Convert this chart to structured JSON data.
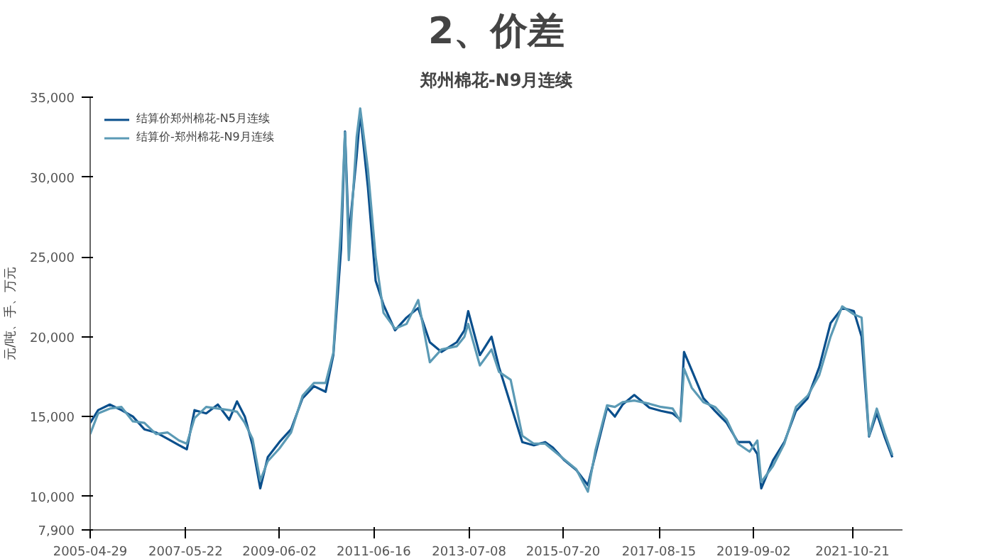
{
  "chart_data": {
    "type": "line",
    "title": "2、价差",
    "subtitle": "郑州棉花-N9月连续",
    "ylabel": "元/吨、手、万元",
    "xlim": [
      "2005-04-29",
      "2022-11-20"
    ],
    "xticks": [
      "2005-04-29",
      "2007-05-22",
      "2009-06-02",
      "2011-06-16",
      "2013-07-08",
      "2015-07-20",
      "2017-08-15",
      "2019-09-02",
      "2021-10-21"
    ],
    "ylim": [
      7900,
      35000
    ],
    "yticks": [
      {
        "value": 7900,
        "label": "7,900"
      },
      {
        "value": 10000,
        "label": "10,000"
      },
      {
        "value": 15000,
        "label": "15,000"
      },
      {
        "value": 20000,
        "label": "20,000"
      },
      {
        "value": 25000,
        "label": "25,000"
      },
      {
        "value": 30000,
        "label": "30,000"
      },
      {
        "value": 35000,
        "label": "35,000"
      }
    ],
    "grid": false,
    "legend": "top left",
    "line_style": "solid",
    "marker": "none",
    "x": [
      "2005-04-29",
      "2005-07",
      "2005-10",
      "2006-01",
      "2006-04",
      "2006-07",
      "2006-10",
      "2007-01",
      "2007-04",
      "2007-06",
      "2007-08",
      "2007-11",
      "2008-02",
      "2008-05",
      "2008-07",
      "2008-09",
      "2008-11",
      "2009-01",
      "2009-03",
      "2009-06",
      "2009-09",
      "2009-12",
      "2010-03",
      "2010-06",
      "2010-08",
      "2010-10",
      "2010-11",
      "2010-12",
      "2011-02",
      "2011-03",
      "2011-05",
      "2011-07",
      "2011-09",
      "2011-12",
      "2012-03",
      "2012-06",
      "2012-09",
      "2012-12",
      "2013-04",
      "2013-06",
      "2013-07",
      "2013-10",
      "2014-01",
      "2014-03",
      "2014-06",
      "2014-09",
      "2014-12",
      "2015-03",
      "2015-05",
      "2015-08",
      "2015-11",
      "2016-02",
      "2016-04",
      "2016-07",
      "2016-09",
      "2016-11",
      "2017-02",
      "2017-06",
      "2017-09",
      "2017-12",
      "2018-02",
      "2018-03",
      "2018-05",
      "2018-08",
      "2018-11",
      "2019-02",
      "2019-05",
      "2019-08",
      "2019-10",
      "2019-11",
      "2020-02",
      "2020-05",
      "2020-08",
      "2020-11",
      "2021-02",
      "2021-05",
      "2021-08",
      "2021-11",
      "2022-01",
      "2022-03",
      "2022-05",
      "2022-07",
      "2022-09"
    ],
    "series": [
      {
        "name": "结算价郑州棉花-N5月连续",
        "color": "#0a4f8c",
        "values": [
          14600,
          15400,
          15750,
          15400,
          15000,
          14200,
          14000,
          13600,
          13200,
          12950,
          15400,
          15200,
          15750,
          14800,
          15950,
          15000,
          13200,
          10500,
          12450,
          13400,
          14200,
          16150,
          16900,
          16550,
          18850,
          25500,
          32850,
          26250,
          31300,
          34000,
          29350,
          23500,
          22000,
          20400,
          21200,
          21800,
          19650,
          19050,
          19650,
          20400,
          21600,
          18850,
          20000,
          18100,
          15750,
          13400,
          13200,
          13400,
          13050,
          12250,
          11650,
          10700,
          12650,
          15550,
          15000,
          15750,
          16350,
          15550,
          15350,
          15200,
          14800,
          19050,
          17900,
          16150,
          15350,
          14600,
          13400,
          13400,
          12650,
          10500,
          12250,
          13400,
          15350,
          16150,
          18100,
          20850,
          21800,
          21600,
          20000,
          13750,
          15200,
          13750,
          12450
        ]
      },
      {
        "name": "结算价-郑州棉花-N9月连续",
        "color": "#5b9ab5",
        "values": [
          13900,
          15200,
          15500,
          15600,
          14700,
          14600,
          13900,
          14000,
          13500,
          13300,
          14900,
          15600,
          15500,
          15400,
          15300,
          14600,
          13600,
          11000,
          12200,
          13000,
          14000,
          16300,
          17100,
          17100,
          19000,
          27000,
          32800,
          24800,
          32500,
          34300,
          30500,
          25000,
          21500,
          20500,
          20800,
          22300,
          18400,
          19200,
          19400,
          20000,
          20800,
          18200,
          19200,
          17800,
          17300,
          13800,
          13300,
          13300,
          12900,
          12300,
          11700,
          10300,
          12900,
          15700,
          15600,
          15900,
          16000,
          15800,
          15600,
          15500,
          14700,
          18000,
          16800,
          15900,
          15600,
          14800,
          13300,
          12800,
          13500,
          10900,
          11900,
          13300,
          15600,
          16300,
          17600,
          20000,
          21900,
          21400,
          21200,
          13800,
          15500,
          14000,
          12600
        ]
      }
    ]
  }
}
